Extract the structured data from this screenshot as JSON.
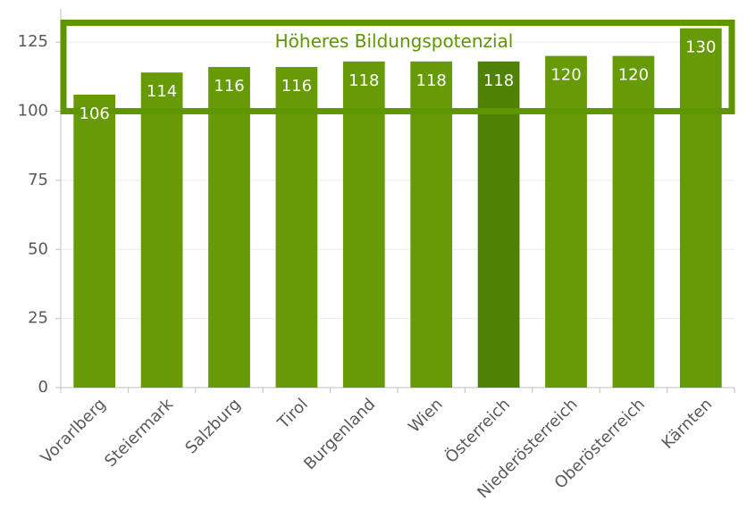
{
  "chart_data": {
    "type": "bar",
    "categories": [
      "Vorarlberg",
      "Steiermark",
      "Salzburg",
      "Tirol",
      "Burgenland",
      "Wien",
      "Österreich",
      "Niederösterreich",
      "Oberösterreich",
      "Kärnten"
    ],
    "values": [
      106,
      114,
      116,
      116,
      118,
      118,
      118,
      120,
      120,
      130
    ],
    "colors": [
      "#669a06",
      "#669a06",
      "#669a06",
      "#669a06",
      "#669a06",
      "#669a06",
      "#4f8204",
      "#669a06",
      "#669a06",
      "#669a06"
    ],
    "ylim": [
      0,
      137
    ],
    "yticks": [
      0,
      25,
      50,
      75,
      100,
      125
    ],
    "grid": true,
    "annotation": {
      "text": "Höheres Bildungspotenzial",
      "range": [
        100,
        132
      ],
      "color": "#5f9500"
    }
  }
}
